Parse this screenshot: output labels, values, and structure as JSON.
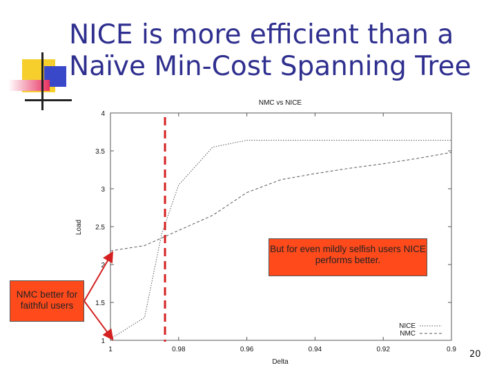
{
  "slide": {
    "title_line1": "NICE is more efficient than a",
    "title_line2": "Naïve Min-Cost Spanning Tree",
    "page_number": "20"
  },
  "callouts": {
    "nice": "But for even mildly selfish users NICE performs better.",
    "nmc": "NMC better for faithful users"
  },
  "colors": {
    "title": "#2f2f8f",
    "callout_fill": "#ff4a1c",
    "marker_line": "#d42020",
    "arrow": "#d42020",
    "deco_yellow": "#f7cf2d",
    "deco_blue": "#3848c8",
    "deco_red": "#e83060",
    "series": "#555555"
  },
  "chart_data": {
    "type": "line",
    "title": "NMC vs NICE",
    "xlabel": "Delta",
    "ylabel": "Load",
    "xlim": [
      1,
      0.9
    ],
    "ylim": [
      1,
      4
    ],
    "x_ticks": [
      "1",
      "0.98",
      "0.96",
      "0.94",
      "0.92",
      "0.9"
    ],
    "y_ticks": [
      "1",
      "1.5",
      "2",
      "2.5",
      "3",
      "3.5",
      "4"
    ],
    "x_tick_values": [
      1,
      0.98,
      0.96,
      0.94,
      0.92,
      0.9
    ],
    "y_tick_values": [
      1,
      1.5,
      2,
      2.5,
      3,
      3.5,
      4
    ],
    "legend_position": "bottom-right",
    "marker_x": 0.984,
    "series": [
      {
        "name": "NICE",
        "style": "dotted",
        "x": [
          1,
          0.99,
          0.985,
          0.98,
          0.97,
          0.96,
          0.95,
          0.94,
          0.93,
          0.92,
          0.91,
          0.9
        ],
        "y": [
          1.02,
          1.3,
          2.4,
          3.05,
          3.55,
          3.64,
          3.64,
          3.64,
          3.64,
          3.64,
          3.64,
          3.64
        ]
      },
      {
        "name": "NMC",
        "style": "dashed",
        "x": [
          1,
          0.99,
          0.98,
          0.97,
          0.96,
          0.95,
          0.94,
          0.93,
          0.92,
          0.91,
          0.9
        ],
        "y": [
          2.18,
          2.25,
          2.45,
          2.65,
          2.95,
          3.12,
          3.2,
          3.27,
          3.33,
          3.4,
          3.48
        ]
      }
    ]
  }
}
